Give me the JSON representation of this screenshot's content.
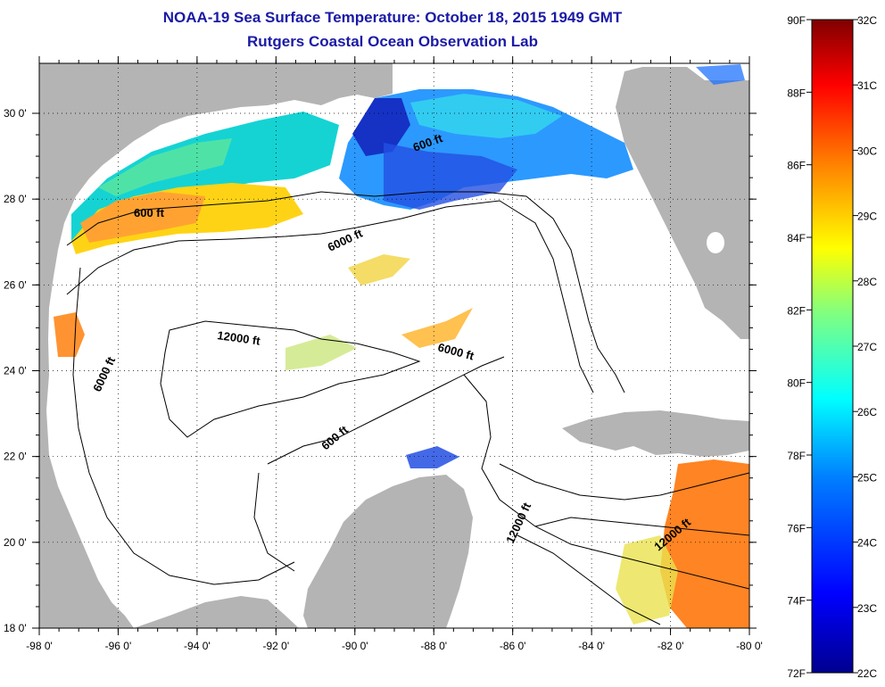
{
  "header": {
    "title": "NOAA-19 Sea Surface Temperature:  October 18, 2015 1949 GMT",
    "subtitle": "Rutgers Coastal Ocean Observation Lab"
  },
  "map": {
    "lon_ticks": [
      "-98 0'",
      "-96 0'",
      "-94 0'",
      "-92 0'",
      "-90 0'",
      "-88 0'",
      "-86 0'",
      "-84 0'",
      "-82 0'",
      "-80 0'"
    ],
    "lat_ticks": [
      "30 0'",
      "28 0'",
      "26 0'",
      "24 0'",
      "22 0'",
      "20 0'",
      "18 0'"
    ],
    "contour_labels": [
      "600 ft",
      "600 ft",
      "6000 ft",
      "12000 ft",
      "6000 ft",
      "6000 ft",
      "600 ft",
      "12000 ft",
      "12000 ft"
    ],
    "colors": {
      "land": "#b4b4b4",
      "water": "#ffffff",
      "title": "#1a1aa6"
    }
  },
  "colorbar": {
    "f_labels": [
      "90F",
      "88F",
      "86F",
      "84F",
      "82F",
      "80F",
      "78F",
      "76F",
      "74F",
      "72F"
    ],
    "c_labels": [
      "32C",
      "31C",
      "30C",
      "29C",
      "28C",
      "27C",
      "26C",
      "25C",
      "24C",
      "23C",
      "22C"
    ],
    "gradient": [
      "#00008f",
      "#0000ff",
      "#0080ff",
      "#00ffff",
      "#80ff80",
      "#ffff00",
      "#ff8000",
      "#ff0000",
      "#800000"
    ]
  }
}
